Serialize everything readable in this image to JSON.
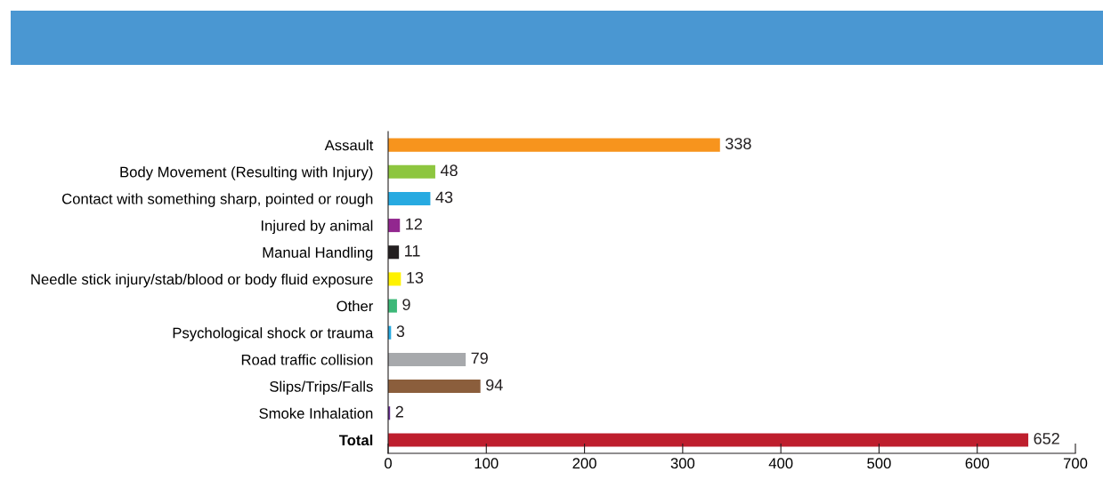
{
  "chart_data": {
    "type": "bar",
    "orientation": "horizontal",
    "categories": [
      "Assault",
      "Body Movement (Resulting with Injury)",
      "Contact with something sharp, pointed or rough",
      "Injured by animal",
      "Manual Handling",
      "Needle stick injury/stab/blood or body fluid exposure",
      "Other",
      "Psychological shock or trauma",
      "Road traffic collision",
      "Slips/Trips/Falls",
      "Smoke Inhalation",
      "Total"
    ],
    "values": [
      338,
      48,
      43,
      12,
      11,
      13,
      9,
      3,
      79,
      94,
      2,
      652
    ],
    "colors": [
      "#f7941d",
      "#8dc63f",
      "#27aae1",
      "#92278f",
      "#231f20",
      "#fff200",
      "#3cb878",
      "#27aae1",
      "#a7a9ac",
      "#8b5e3c",
      "#662d91",
      "#be1e2d"
    ],
    "xlim": [
      0,
      700
    ],
    "xticks": [
      0,
      100,
      200,
      300,
      400,
      500,
      600,
      700
    ],
    "data_labels": true,
    "grid": false,
    "legend": false
  }
}
